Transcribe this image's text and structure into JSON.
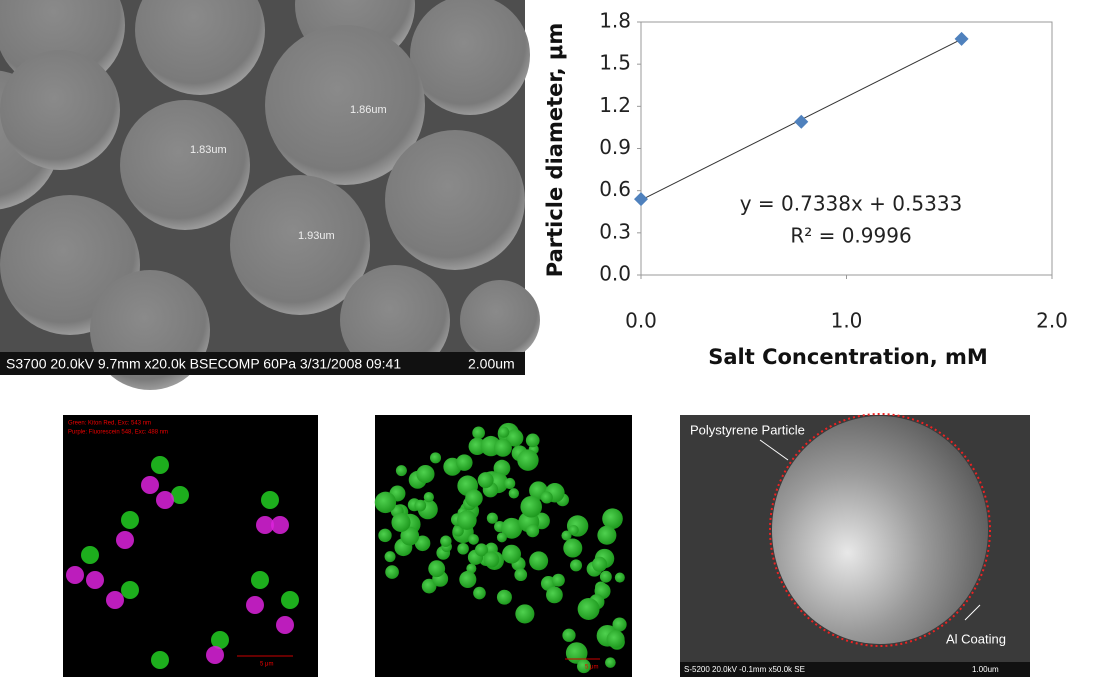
{
  "chart_data": {
    "type": "scatter",
    "x_label": "Salt Concentration, mM",
    "y_label": "Particle diameter, μm",
    "x": [
      0,
      0.78,
      1.56
    ],
    "values": [
      0.54,
      1.09,
      1.68
    ],
    "color": "#4f81bd",
    "xlim": [
      0,
      2
    ],
    "xticks": [
      {
        "value": 0,
        "label": "0.0"
      },
      {
        "value": 1,
        "label": "1.0"
      },
      {
        "value": 2,
        "label": "2.0"
      }
    ],
    "ylim": [
      0,
      1.8
    ],
    "yticks": [
      {
        "value": 0,
        "label": "0.0"
      },
      0.3,
      0.6,
      0.9,
      1.2,
      1.5,
      1.8
    ],
    "grid": false,
    "trendline": {
      "slope": 0.7338,
      "intercept": 0.5333,
      "label": "y = 0.7338x + 0.5333",
      "r2_label": "R² = 0.9996"
    }
  },
  "images": {
    "sem_top": {
      "measurements": [
        "1.83um",
        "1.86um",
        "1.93um"
      ],
      "info": "S3700 20.0kV 9.7mm x20.0k BSECOMP 60Pa 3/31/2008 09:41",
      "scale": "2.00um"
    },
    "fluorescence_mixed": {
      "legend": [
        "Green: Kiton Red, Exc: 543 nm",
        "Purple: Fluorescein 548, Exc: 488 nm"
      ],
      "scale": "5 μm"
    },
    "fluorescence_green": {
      "scale": "5 μm"
    },
    "sem_coated": {
      "labels": [
        "Polystyrene Particle",
        "Al Coating"
      ],
      "info": "S-5200 20.0kV -0.1mm x50.0k SE",
      "scale": "1.00um"
    }
  }
}
